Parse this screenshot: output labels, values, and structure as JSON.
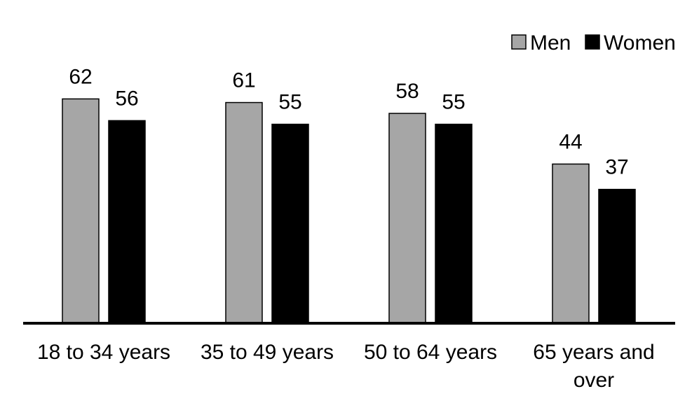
{
  "chart_data": {
    "type": "bar",
    "categories": [
      [
        "18 to 34 years"
      ],
      [
        "35 to 49 years"
      ],
      [
        "50 to 64 years"
      ],
      [
        "65 years and",
        "over"
      ]
    ],
    "series": [
      {
        "name": "Men",
        "values": [
          62,
          61,
          58,
          44
        ],
        "color": "#a6a6a6"
      },
      {
        "name": "Women",
        "values": [
          56,
          55,
          55,
          37
        ],
        "color": "#000000"
      }
    ],
    "value_labels": [
      [
        "62",
        "61",
        "58",
        "44"
      ],
      [
        "56",
        "55",
        "55",
        "37"
      ]
    ],
    "ylim": [
      0,
      70
    ],
    "grid": false,
    "legend_position": "top-right",
    "colors": {
      "men": "#a6a6a6",
      "women": "#000000",
      "bar_outline": "#000000",
      "axis": "#000000",
      "background": "#ffffff"
    }
  }
}
